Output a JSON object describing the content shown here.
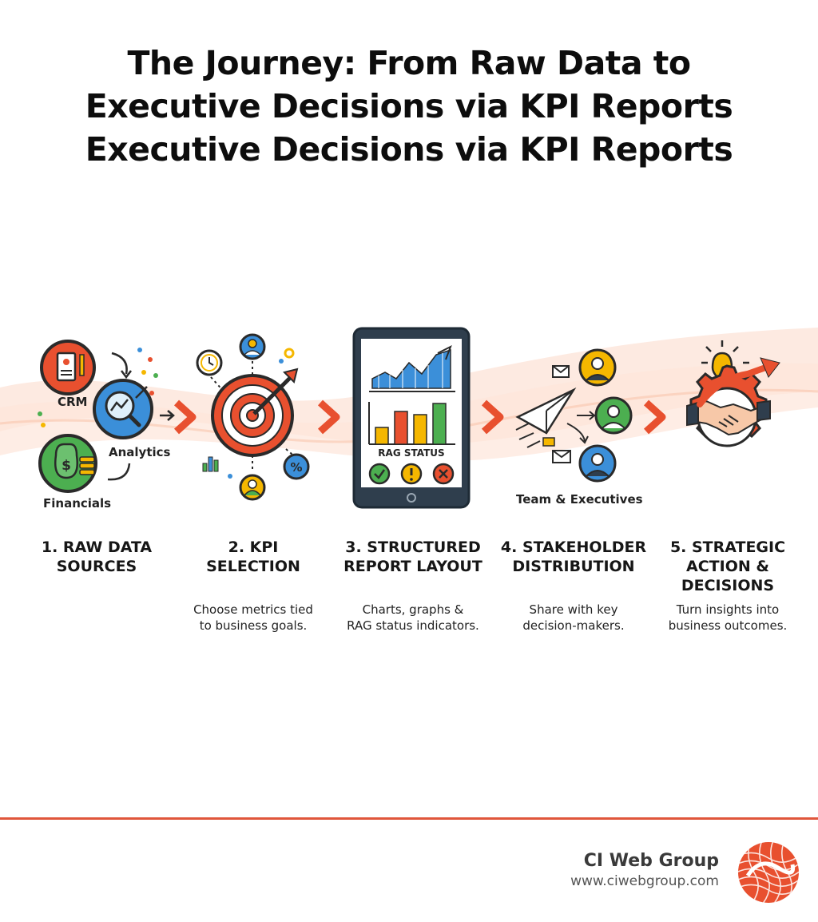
{
  "title": {
    "line1": "The Journey: From Raw Data to",
    "line2": "Executive Decisions via KPI Reports",
    "line3": "Executive Decisions via KPI Reports"
  },
  "steps": [
    {
      "title_line1": "1. RAW DATA",
      "title_line2": "SOURCES",
      "title_line3": "",
      "desc_line1": "",
      "desc_line2": ""
    },
    {
      "title_line1": "2. KPI",
      "title_line2": "SELECTION",
      "title_line3": "",
      "desc_line1": "Choose metrics tied",
      "desc_line2": "to business goals."
    },
    {
      "title_line1": "3. STRUCTURED",
      "title_line2": "REPORT LAYOUT",
      "title_line3": "",
      "desc_line1": "Charts, graphs &",
      "desc_line2": "RAG status indicators."
    },
    {
      "title_line1": "4. STAKEHOLDER",
      "title_line2": "DISTRIBUTION",
      "title_line3": "",
      "desc_line1": "Share with key",
      "desc_line2": "decision-makers."
    },
    {
      "title_line1": "5. STRATEGIC",
      "title_line2": "ACTION &",
      "title_line3": "DECISIONS",
      "desc_line1": "Turn insights into",
      "desc_line2": "business outcomes."
    }
  ],
  "icon_labels": {
    "crm": "CRM",
    "analytics": "Analytics",
    "financials": "Financials",
    "rag_status": "RAG STATUS",
    "team": "Team & Executives"
  },
  "brand": {
    "name": "CI Web Group",
    "url": "www.ciwebgroup.com"
  },
  "colors": {
    "accent": "#e8502f",
    "footer_line": "#e0563b",
    "blue": "#3b8fd9",
    "green": "#4caf50",
    "yellow": "#f5b700",
    "navy": "#2f3e4d"
  }
}
